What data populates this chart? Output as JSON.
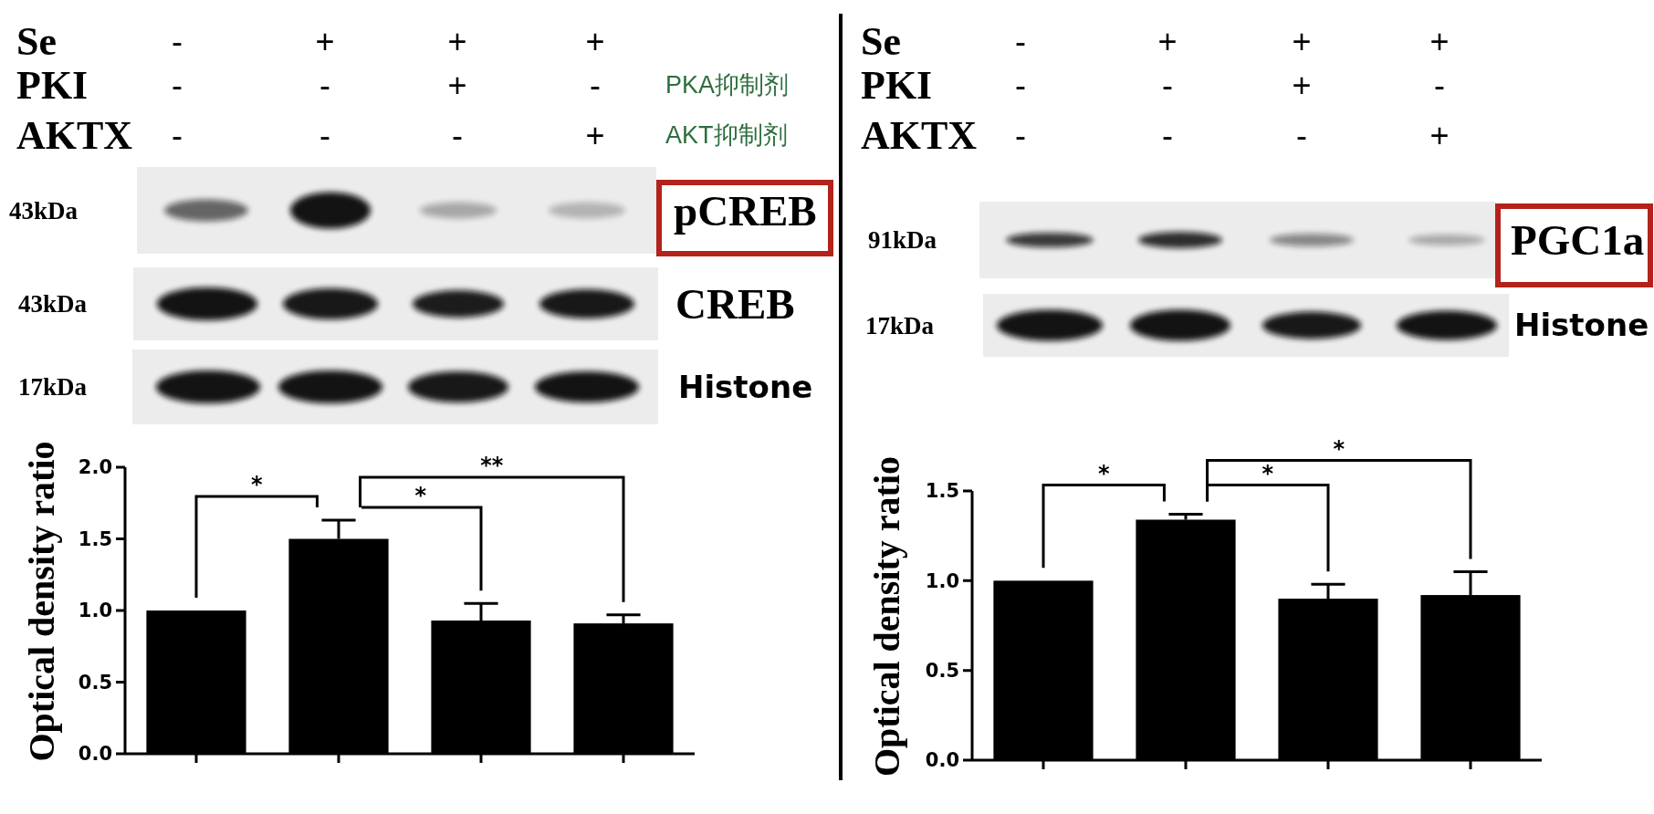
{
  "chart_data": [
    {
      "type": "bar",
      "categories": [
        null,
        null,
        null,
        null
      ],
      "values": [
        1.0,
        1.5,
        0.93,
        0.91
      ],
      "errors": [
        null,
        [
          1.5,
          1.63
        ],
        [
          0.93,
          1.05
        ],
        [
          0.91,
          0.97
        ]
      ],
      "color": "#000000",
      "ylabel": "Optical density ratio",
      "ylim": [
        0,
        2
      ],
      "yticks": [
        {
          "value": 0,
          "label": "0.0"
        },
        {
          "value": 0.5,
          "label": "0.5"
        },
        {
          "value": 1,
          "label": "1.0"
        },
        {
          "value": 1.5,
          "label": "1.5"
        },
        {
          "value": 2,
          "label": "2.0"
        }
      ],
      "annotations": [
        "Se",
        "-",
        "+",
        "+",
        "+",
        "PKI",
        "-",
        "-",
        "+",
        "-",
        "PKA抑制剂",
        "AKTX",
        "-",
        "-",
        "-",
        "+",
        "AKT抑制剂",
        "43kDa",
        "pCREB",
        "43kDa",
        "CREB",
        "17kDa",
        "Histone",
        "*",
        "*",
        "**"
      ]
    },
    {
      "type": "bar",
      "categories": [
        null,
        null,
        null,
        null
      ],
      "values": [
        1.0,
        1.34,
        0.9,
        0.92
      ],
      "errors": [
        null,
        [
          1.34,
          1.37
        ],
        [
          0.9,
          0.98
        ],
        [
          0.92,
          1.05
        ]
      ],
      "color": "#000000",
      "ylabel": "Optical density ratio",
      "ylim": [
        0,
        1.5
      ],
      "yticks": [
        {
          "value": 0,
          "label": "0.0"
        },
        {
          "value": 0.5,
          "label": "0.5"
        },
        {
          "value": 1,
          "label": "1.0"
        },
        {
          "value": 1.5,
          "label": "1.5"
        }
      ],
      "annotations": [
        "Se",
        "-",
        "+",
        "+",
        "+",
        "PKI",
        "-",
        "-",
        "+",
        "-",
        "AKTX",
        "-",
        "-",
        "-",
        "+",
        "91kDa",
        "PGC1a",
        "17kDa",
        "Histone",
        "*",
        "*",
        "*"
      ]
    }
  ]
}
